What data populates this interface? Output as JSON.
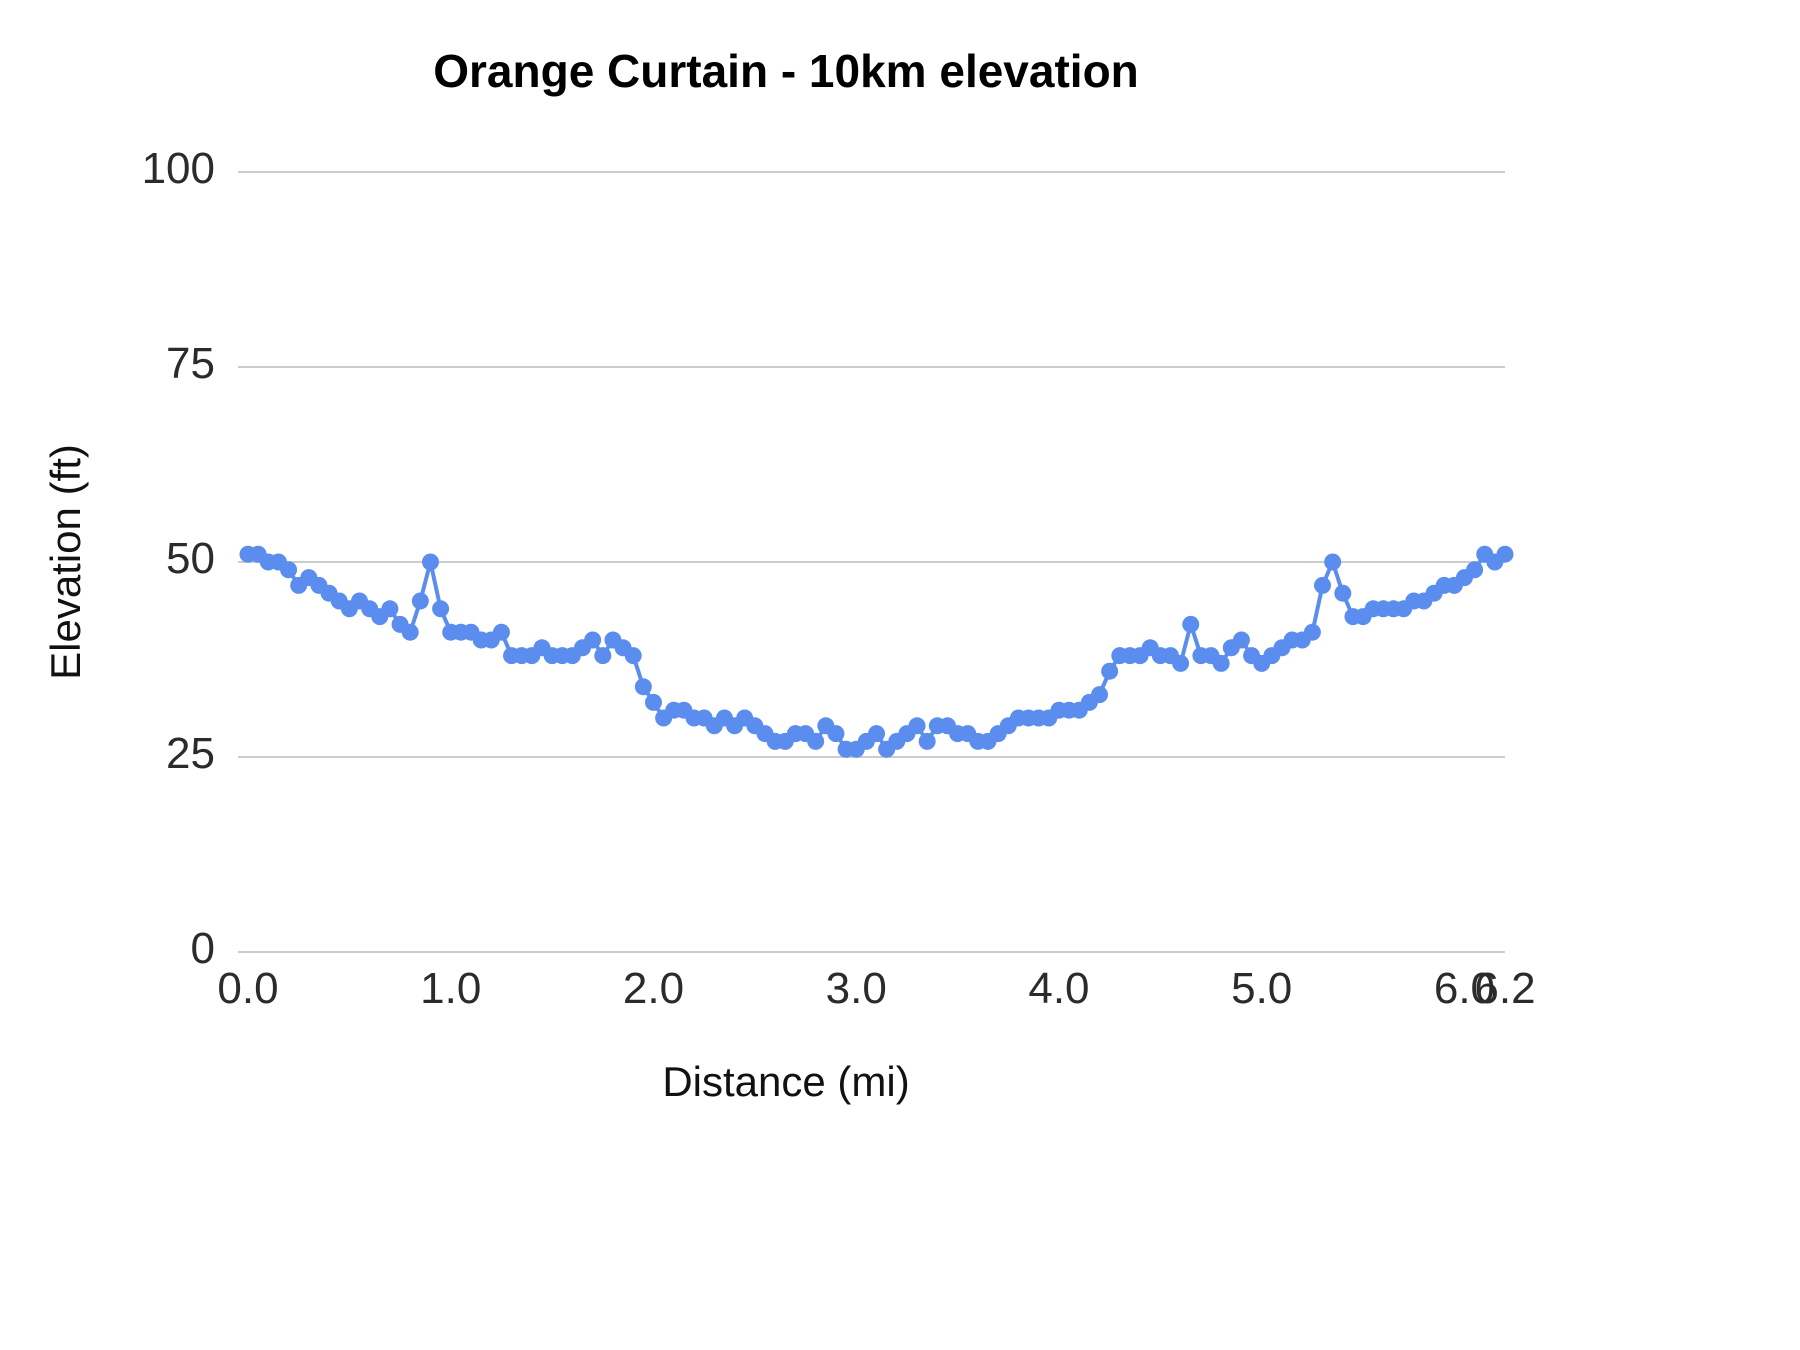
{
  "chart_data": {
    "type": "line",
    "title": "Orange Curtain - 10km elevation",
    "xlabel": "Distance (mi)",
    "ylabel": "Elevation (ft)",
    "xlim": [
      0,
      6.2
    ],
    "ylim": [
      0,
      100
    ],
    "y_ticks": [
      0,
      25,
      50,
      75,
      100
    ],
    "y_tick_labels": [
      "0",
      "25",
      "50",
      "75",
      "100"
    ],
    "x_ticks": [
      0.0,
      1.0,
      2.0,
      3.0,
      4.0,
      5.0,
      6.0,
      6.2
    ],
    "x_tick_labels": [
      "0.0",
      "1.0",
      "2.0",
      "3.0",
      "4.0",
      "5.0",
      "6.0",
      "6.2"
    ],
    "grid": "horizontal",
    "legend": "none",
    "marker": "circle",
    "line_color": "#5b8def",
    "marker_color": "#5b8def",
    "gridline_color": "#cccccc",
    "text_color": "#2b2b2b",
    "background": "#ffffff",
    "points": [
      [
        0.0,
        51
      ],
      [
        0.05,
        51
      ],
      [
        0.1,
        50
      ],
      [
        0.15,
        50
      ],
      [
        0.2,
        49
      ],
      [
        0.25,
        47
      ],
      [
        0.3,
        48
      ],
      [
        0.35,
        47
      ],
      [
        0.4,
        46
      ],
      [
        0.45,
        45
      ],
      [
        0.5,
        44
      ],
      [
        0.55,
        45
      ],
      [
        0.6,
        44
      ],
      [
        0.65,
        43
      ],
      [
        0.7,
        44
      ],
      [
        0.75,
        42
      ],
      [
        0.8,
        41
      ],
      [
        0.85,
        45
      ],
      [
        0.9,
        50
      ],
      [
        0.95,
        44
      ],
      [
        1.0,
        41
      ],
      [
        1.05,
        41
      ],
      [
        1.1,
        41
      ],
      [
        1.15,
        40
      ],
      [
        1.2,
        40
      ],
      [
        1.25,
        41
      ],
      [
        1.3,
        38
      ],
      [
        1.35,
        38
      ],
      [
        1.4,
        38
      ],
      [
        1.45,
        39
      ],
      [
        1.5,
        38
      ],
      [
        1.55,
        38
      ],
      [
        1.6,
        38
      ],
      [
        1.65,
        39
      ],
      [
        1.7,
        40
      ],
      [
        1.75,
        38
      ],
      [
        1.8,
        40
      ],
      [
        1.85,
        39
      ],
      [
        1.9,
        38
      ],
      [
        1.95,
        34
      ],
      [
        2.0,
        32
      ],
      [
        2.05,
        30
      ],
      [
        2.1,
        31
      ],
      [
        2.15,
        31
      ],
      [
        2.2,
        30
      ],
      [
        2.25,
        30
      ],
      [
        2.3,
        29
      ],
      [
        2.35,
        30
      ],
      [
        2.4,
        29
      ],
      [
        2.45,
        30
      ],
      [
        2.5,
        29
      ],
      [
        2.55,
        28
      ],
      [
        2.6,
        27
      ],
      [
        2.65,
        27
      ],
      [
        2.7,
        28
      ],
      [
        2.75,
        28
      ],
      [
        2.8,
        27
      ],
      [
        2.85,
        29
      ],
      [
        2.9,
        28
      ],
      [
        2.95,
        26
      ],
      [
        3.0,
        26
      ],
      [
        3.05,
        27
      ],
      [
        3.1,
        28
      ],
      [
        3.15,
        26
      ],
      [
        3.2,
        27
      ],
      [
        3.25,
        28
      ],
      [
        3.3,
        29
      ],
      [
        3.35,
        27
      ],
      [
        3.4,
        29
      ],
      [
        3.45,
        29
      ],
      [
        3.5,
        28
      ],
      [
        3.55,
        28
      ],
      [
        3.6,
        27
      ],
      [
        3.65,
        27
      ],
      [
        3.7,
        28
      ],
      [
        3.75,
        29
      ],
      [
        3.8,
        30
      ],
      [
        3.85,
        30
      ],
      [
        3.9,
        30
      ],
      [
        3.95,
        30
      ],
      [
        4.0,
        31
      ],
      [
        4.05,
        31
      ],
      [
        4.1,
        31
      ],
      [
        4.15,
        32
      ],
      [
        4.2,
        33
      ],
      [
        4.25,
        36
      ],
      [
        4.3,
        38
      ],
      [
        4.35,
        38
      ],
      [
        4.4,
        38
      ],
      [
        4.45,
        39
      ],
      [
        4.5,
        38
      ],
      [
        4.55,
        38
      ],
      [
        4.6,
        37
      ],
      [
        4.65,
        42
      ],
      [
        4.7,
        38
      ],
      [
        4.75,
        38
      ],
      [
        4.8,
        37
      ],
      [
        4.85,
        39
      ],
      [
        4.9,
        40
      ],
      [
        4.95,
        38
      ],
      [
        5.0,
        37
      ],
      [
        5.05,
        38
      ],
      [
        5.1,
        39
      ],
      [
        5.15,
        40
      ],
      [
        5.2,
        40
      ],
      [
        5.25,
        41
      ],
      [
        5.3,
        47
      ],
      [
        5.35,
        50
      ],
      [
        5.4,
        46
      ],
      [
        5.45,
        43
      ],
      [
        5.5,
        43
      ],
      [
        5.55,
        44
      ],
      [
        5.6,
        44
      ],
      [
        5.65,
        44
      ],
      [
        5.7,
        44
      ],
      [
        5.75,
        45
      ],
      [
        5.8,
        45
      ],
      [
        5.85,
        46
      ],
      [
        5.9,
        47
      ],
      [
        5.95,
        47
      ],
      [
        6.0,
        48
      ],
      [
        6.05,
        49
      ],
      [
        6.1,
        51
      ],
      [
        6.15,
        50
      ],
      [
        6.2,
        51
      ]
    ]
  }
}
